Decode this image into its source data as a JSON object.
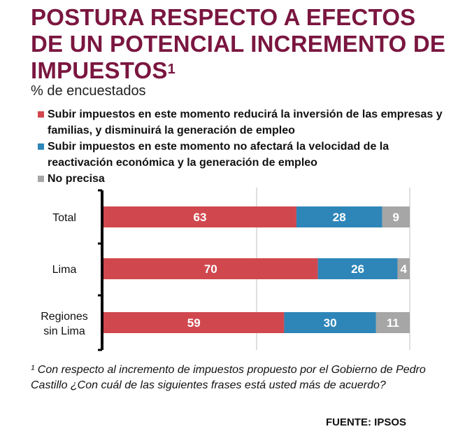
{
  "title": "POSTURA RESPECTO A EFECTOS DE UN POTENCIAL INCREMENTO DE IMPUESTOS",
  "title_footnote_mark": "1",
  "subtitle": "% de encuestados",
  "legend": [
    {
      "label": "Subir impuestos en este momento reducirá la inversión de las empresas y familias, y disminuirá la generación de empleo",
      "color": "#d0484e"
    },
    {
      "label": "Subir impuestos en este momento no afectará la velocidad de la reactivación económica y la generación de empleo",
      "color": "#2e86b8"
    },
    {
      "label": "No precisa",
      "color": "#a6a6a6"
    }
  ],
  "chart_data": {
    "type": "bar",
    "orientation": "horizontal",
    "stacked": true,
    "categories": [
      "Total",
      "Lima",
      "Regiones sin Lima"
    ],
    "series": [
      {
        "name": "Subir impuestos en este momento reducirá la inversión de las empresas y familias, y disminuirá la generación de empleo",
        "values": [
          63,
          70,
          59
        ],
        "color": "#d0484e"
      },
      {
        "name": "Subir impuestos en este momento no afectará la velocidad de la reactivación económica y la generación de empleo",
        "values": [
          28,
          26,
          30
        ],
        "color": "#2e86b8"
      },
      {
        "name": "No precisa",
        "values": [
          9,
          4,
          11
        ],
        "color": "#a6a6a6"
      }
    ],
    "xlim": [
      0,
      100
    ],
    "grid": true
  },
  "footnote": "¹ Con respecto al incremento de impuestos propuesto por el Gobierno de Pedro Castillo ¿Con cuál de las siguientes frases está usted más de acuerdo?",
  "source": "FUENTE: IPSOS"
}
